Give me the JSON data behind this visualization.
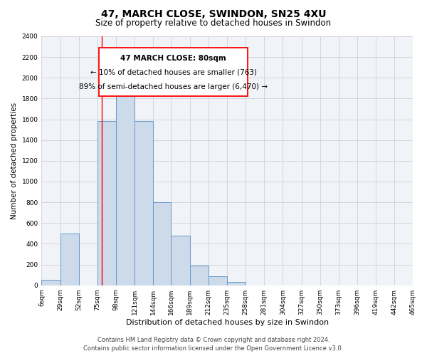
{
  "title": "47, MARCH CLOSE, SWINDON, SN25 4XU",
  "subtitle": "Size of property relative to detached houses in Swindon",
  "xlabel": "Distribution of detached houses by size in Swindon",
  "ylabel": "Number of detached properties",
  "bin_edges": [
    6,
    29,
    52,
    75,
    98,
    121,
    144,
    166,
    189,
    212,
    235,
    258,
    281,
    304,
    327,
    350,
    373,
    396,
    419,
    442,
    465
  ],
  "bin_labels": [
    "6sqm",
    "29sqm",
    "52sqm",
    "75sqm",
    "98sqm",
    "121sqm",
    "144sqm",
    "166sqm",
    "189sqm",
    "212sqm",
    "235sqm",
    "258sqm",
    "281sqm",
    "304sqm",
    "327sqm",
    "350sqm",
    "373sqm",
    "396sqm",
    "419sqm",
    "442sqm",
    "465sqm"
  ],
  "counts": [
    50,
    500,
    0,
    1580,
    1950,
    1580,
    800,
    480,
    190,
    90,
    30,
    0,
    0,
    0,
    0,
    0,
    0,
    0,
    0,
    0
  ],
  "bar_facecolor": "#ccdaea",
  "bar_edgecolor": "#6699cc",
  "grid_color": "#d0d0d0",
  "background_color": "#f0f4f8",
  "red_line_x": 80,
  "annotation_line1": "47 MARCH CLOSE: 80sqm",
  "annotation_line2": "← 10% of detached houses are smaller (763)",
  "annotation_line3": "89% of semi-detached houses are larger (6,470) →",
  "ylim": [
    0,
    2400
  ],
  "yticks": [
    0,
    200,
    400,
    600,
    800,
    1000,
    1200,
    1400,
    1600,
    1800,
    2000,
    2200,
    2400
  ],
  "footer_line1": "Contains HM Land Registry data © Crown copyright and database right 2024.",
  "footer_line2": "Contains public sector information licensed under the Open Government Licence v3.0.",
  "title_fontsize": 10,
  "subtitle_fontsize": 8.5,
  "xlabel_fontsize": 8,
  "ylabel_fontsize": 7.5,
  "tick_fontsize": 6.5,
  "annotation_fontsize": 7.5,
  "footer_fontsize": 6
}
